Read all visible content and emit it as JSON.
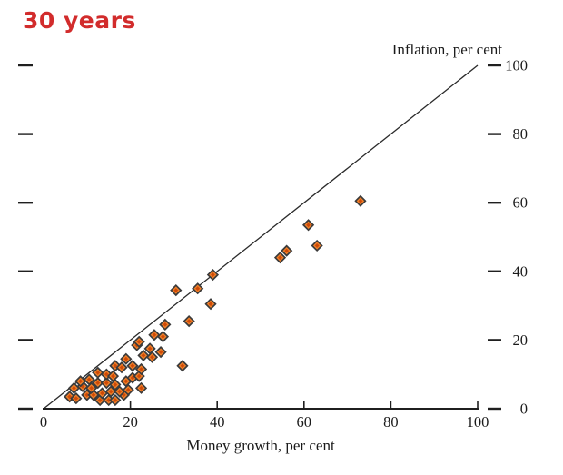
{
  "title": {
    "text": "30 years",
    "color": "#d22c2c"
  },
  "chart_data": {
    "type": "scatter",
    "title": "30 years",
    "xlabel": "Money growth, per cent",
    "ylabel": "Inflation, per cent",
    "xlim": [
      0,
      100
    ],
    "ylim": [
      0,
      100
    ],
    "x_ticks": [
      0,
      20,
      40,
      60,
      80,
      100
    ],
    "y_ticks": [
      0,
      20,
      40,
      60,
      80,
      100
    ],
    "y_labels_side": "right",
    "grid": false,
    "reference_line": {
      "from": [
        0,
        0
      ],
      "to": [
        100,
        100
      ],
      "description": "45-degree money-growth = inflation line",
      "color": "#2a2a2a"
    },
    "marker": {
      "shape": "diamond",
      "fill": "#f0812a",
      "center_fill": "#cf4a08",
      "stroke": "#3b3b3b"
    },
    "axis_color": "#1f1f1f",
    "points": [
      [
        6,
        3.5
      ],
      [
        7.5,
        3
      ],
      [
        10,
        4
      ],
      [
        11.5,
        4
      ],
      [
        13,
        2.5
      ],
      [
        15,
        2.5
      ],
      [
        16.5,
        2.5
      ],
      [
        18.5,
        4
      ],
      [
        7,
        6
      ],
      [
        9,
        6.5
      ],
      [
        11,
        6
      ],
      [
        13.5,
        4.5
      ],
      [
        15.5,
        5
      ],
      [
        17.5,
        5
      ],
      [
        19.5,
        5.5
      ],
      [
        22.5,
        6
      ],
      [
        8.5,
        8
      ],
      [
        10.5,
        8.5
      ],
      [
        12.5,
        7.5
      ],
      [
        14.5,
        7.5
      ],
      [
        16.5,
        7
      ],
      [
        19,
        8
      ],
      [
        20.5,
        9
      ],
      [
        22,
        9.5
      ],
      [
        12.5,
        10.5
      ],
      [
        14.5,
        10
      ],
      [
        16,
        9.5
      ],
      [
        16.5,
        12.5
      ],
      [
        18,
        12
      ],
      [
        20.5,
        12.5
      ],
      [
        22.5,
        11.5
      ],
      [
        19,
        14.5
      ],
      [
        21.5,
        18.5
      ],
      [
        24.5,
        17.5
      ],
      [
        27,
        16.5
      ],
      [
        23,
        15.5
      ],
      [
        25,
        15
      ],
      [
        22,
        19.5
      ],
      [
        25.5,
        21.5
      ],
      [
        27.5,
        21
      ],
      [
        28,
        24.5
      ],
      [
        33.5,
        25.5
      ],
      [
        32,
        12.5
      ],
      [
        30.5,
        34.5
      ],
      [
        35.5,
        35
      ],
      [
        38.5,
        30.5
      ],
      [
        39,
        39
      ],
      [
        54.5,
        44
      ],
      [
        56,
        46
      ],
      [
        61,
        53.5
      ],
      [
        63,
        47.5
      ],
      [
        73,
        60.5
      ]
    ]
  }
}
